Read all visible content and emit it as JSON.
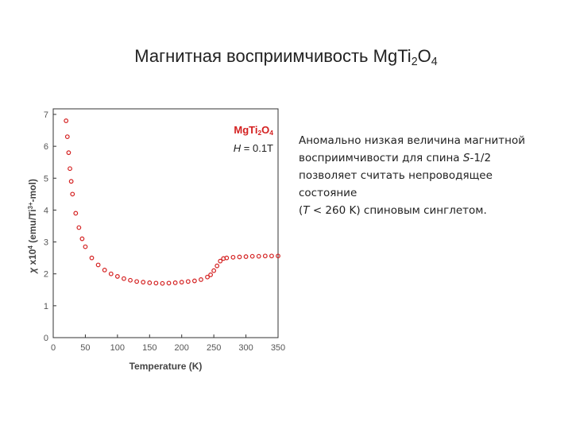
{
  "slide": {
    "title": [
      {
        "text": "Магнитная восприимчивость MgTi"
      },
      {
        "text": "2",
        "sub": true
      },
      {
        "text": "O"
      },
      {
        "text": "4",
        "sub": true
      }
    ],
    "body": [
      [
        {
          "text": "Аномально низкая величина магнитной"
        }
      ],
      [
        {
          "text": "восприимчивости для спина "
        },
        {
          "text": "S",
          "italic": true
        },
        {
          "text": "-1/2"
        }
      ],
      [
        {
          "text": "позволяет считать непроводящее"
        }
      ],
      [
        {
          "text": "состояние"
        }
      ],
      [
        {
          "text": "("
        },
        {
          "text": "T",
          "italic": true
        },
        {
          "text": " < 260 K) спиновым синглетом."
        }
      ]
    ]
  },
  "chart_data": {
    "type": "scatter",
    "xlabel": [
      {
        "text": "Temperature (K)"
      }
    ],
    "ylabel": [
      {
        "text": "χ",
        "italic": true
      },
      {
        "text": " x10"
      },
      {
        "text": "4",
        "sup": true
      },
      {
        "text": " (emu/Ti"
      },
      {
        "text": "3+",
        "sup": true
      },
      {
        "text": "-mol)"
      }
    ],
    "annotations": [
      {
        "segments": [
          {
            "text": "MgTi"
          },
          {
            "text": "2",
            "sub": true
          },
          {
            "text": "O"
          },
          {
            "text": "4",
            "sub": true
          }
        ],
        "color": "#d42020",
        "bold": true
      },
      {
        "segments": [
          {
            "text": "H",
            "italic": true
          },
          {
            "text": " = 0.1T"
          }
        ],
        "color": "#222222"
      }
    ],
    "color": "#d42020",
    "x": [
      20,
      22,
      24,
      26,
      28,
      30,
      35,
      40,
      45,
      50,
      60,
      70,
      80,
      90,
      100,
      110,
      120,
      130,
      140,
      150,
      160,
      170,
      180,
      190,
      200,
      210,
      220,
      230,
      240,
      245,
      250,
      255,
      260,
      265,
      270,
      280,
      290,
      300,
      310,
      320,
      330,
      340,
      350
    ],
    "values": [
      6.8,
      6.3,
      5.8,
      5.3,
      4.9,
      4.5,
      3.9,
      3.45,
      3.1,
      2.85,
      2.5,
      2.28,
      2.12,
      2.0,
      1.92,
      1.85,
      1.8,
      1.76,
      1.74,
      1.72,
      1.71,
      1.7,
      1.71,
      1.72,
      1.74,
      1.76,
      1.78,
      1.82,
      1.9,
      1.97,
      2.1,
      2.25,
      2.4,
      2.48,
      2.5,
      2.52,
      2.53,
      2.54,
      2.55,
      2.55,
      2.56,
      2.56,
      2.56
    ],
    "xlim": [
      0,
      350
    ],
    "xticks": [
      0,
      50,
      100,
      150,
      200,
      250,
      300,
      350
    ],
    "ylim": [
      0,
      7
    ],
    "yticks": [
      0,
      1,
      2,
      3,
      4,
      5,
      6,
      7
    ]
  }
}
